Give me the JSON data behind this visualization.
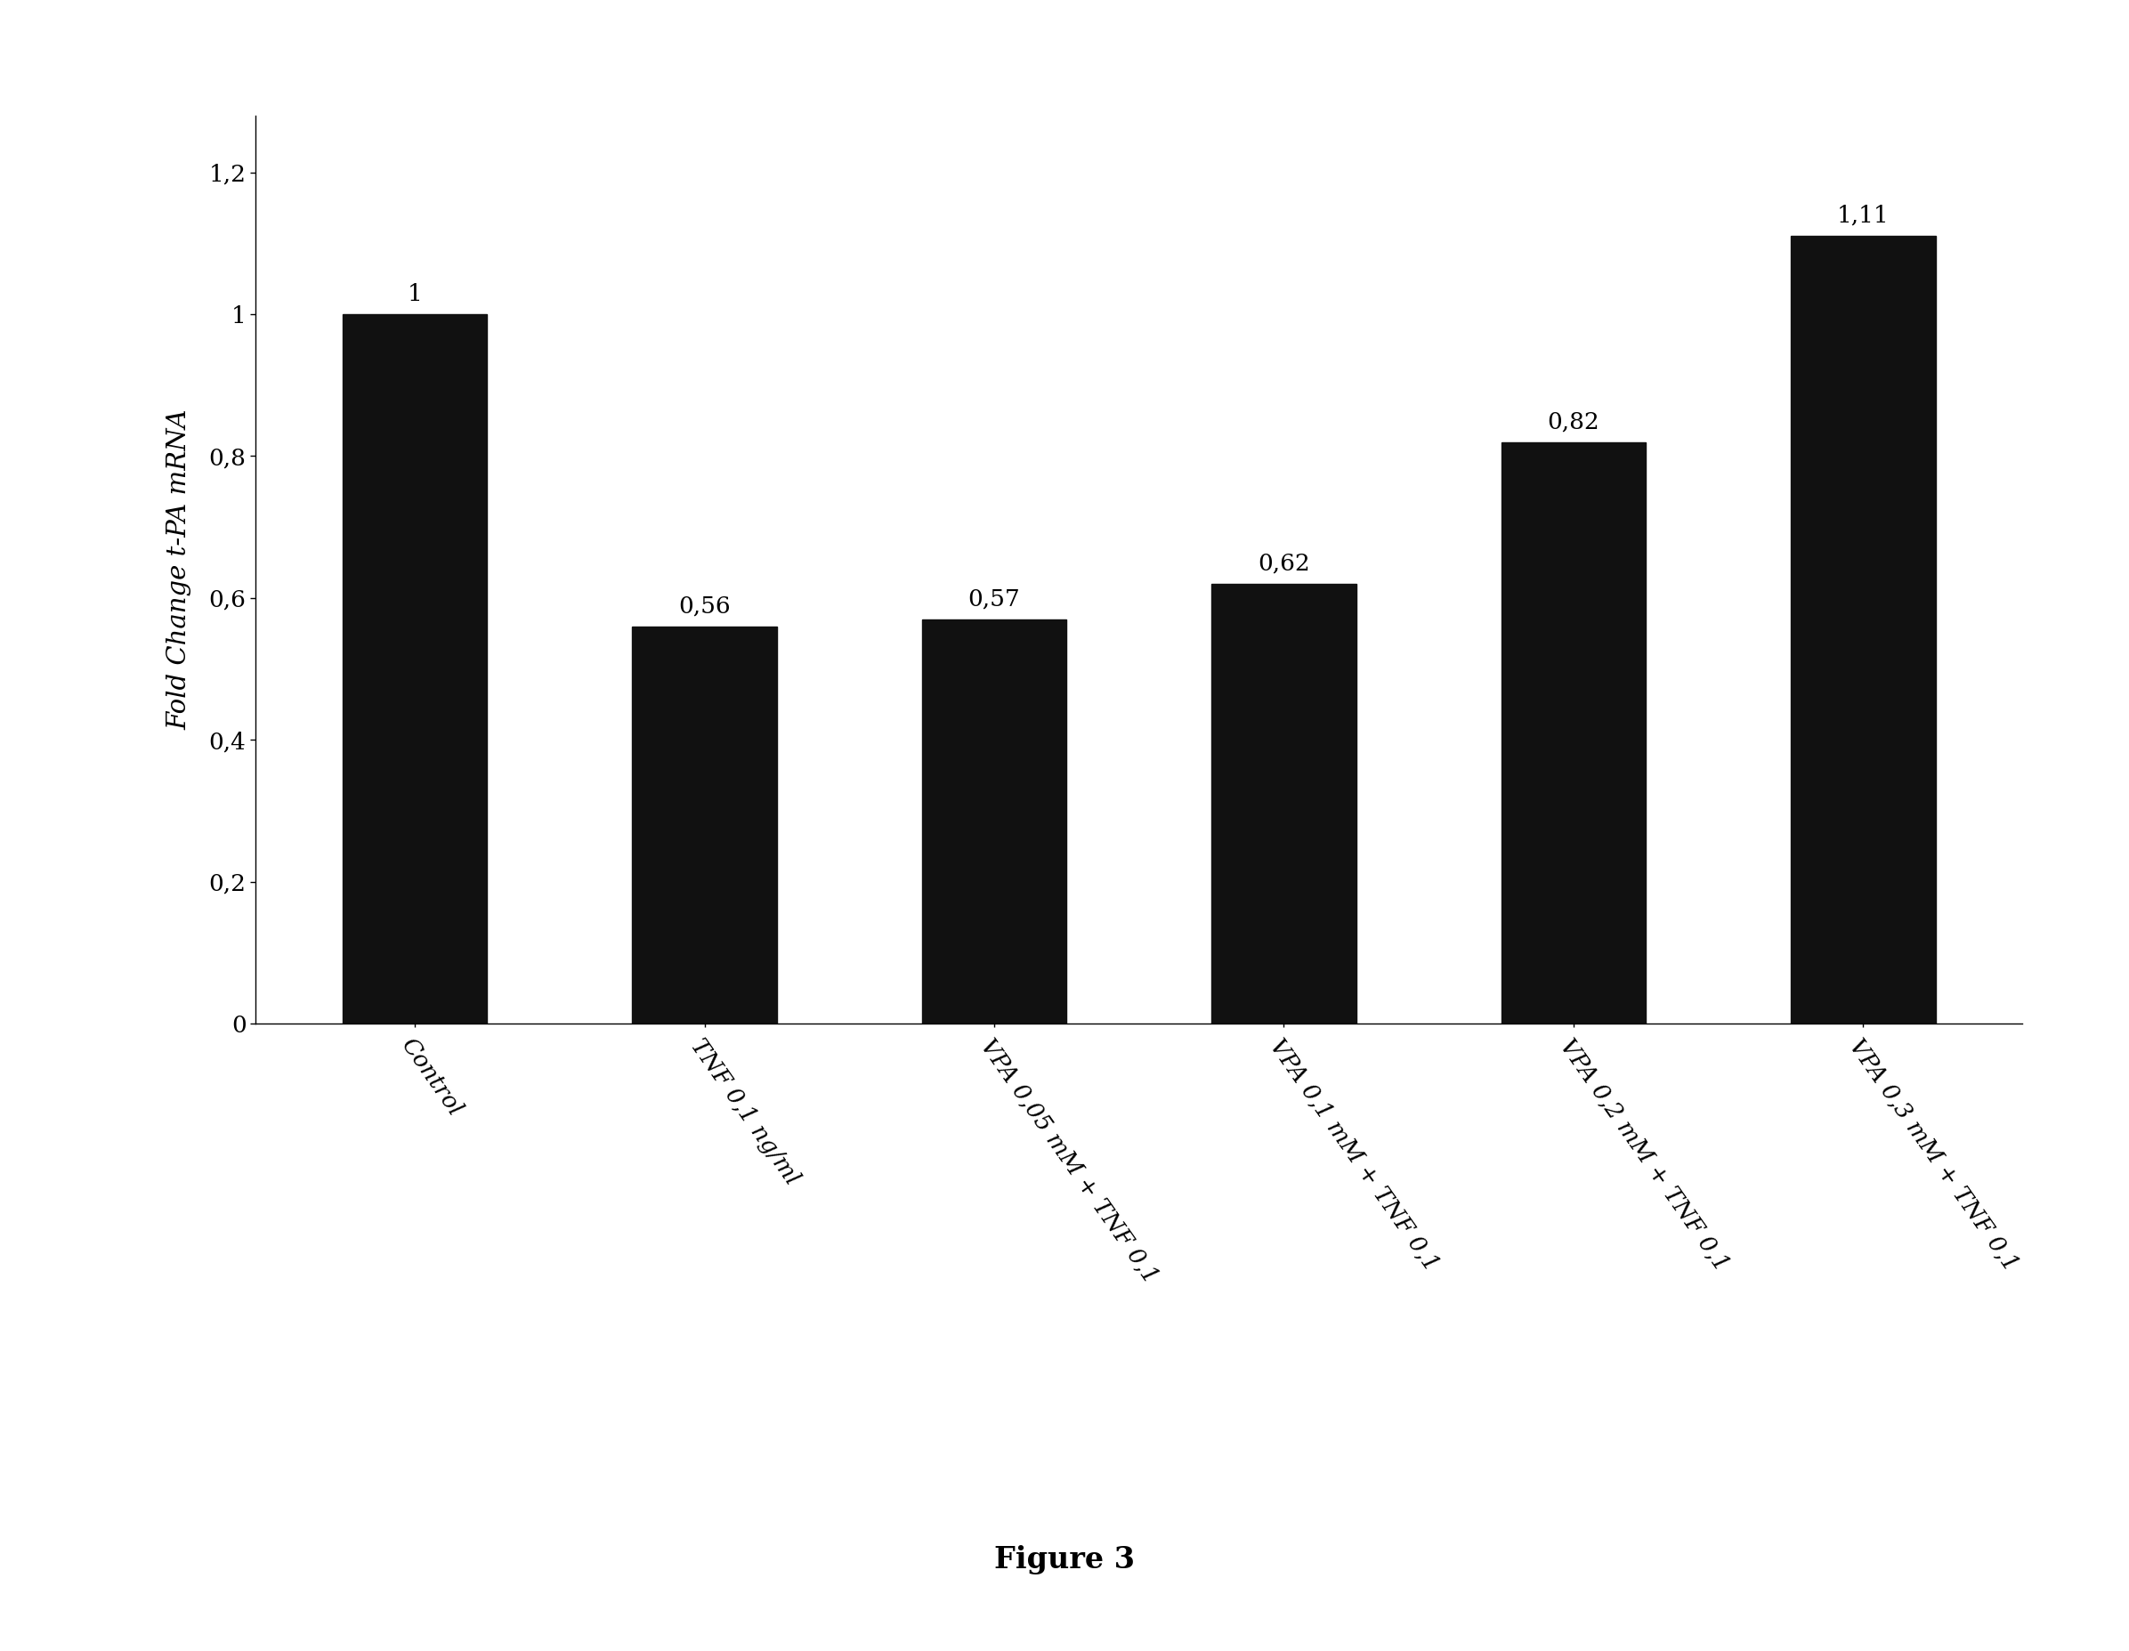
{
  "categories": [
    "Control",
    "TNF 0,1 ng/ml",
    "VPA 0,05 mM + TNF 0,1",
    "VPA 0,1 mM + TNF 0,1",
    "VPA 0,2 mM + TNF 0,1",
    "VPA 0,3 mM + TNF 0,1"
  ],
  "values": [
    1.0,
    0.56,
    0.57,
    0.62,
    0.82,
    1.11
  ],
  "value_labels": [
    "1",
    "0,56",
    "0,57",
    "0,62",
    "0,82",
    "1,11"
  ],
  "bar_color": "#111111",
  "ylabel": "Fold Change t-PA mRNA",
  "ylim": [
    0,
    1.28
  ],
  "yticks": [
    0,
    0.2,
    0.4,
    0.6,
    0.8,
    1.0,
    1.2
  ],
  "ytick_labels": [
    "0",
    "0,2",
    "0,4",
    "0,6",
    "0,8",
    "1",
    "1,2"
  ],
  "figure_caption": "Figure 3",
  "background_color": "#ffffff",
  "bar_width": 0.5,
  "axis_label_fontsize": 21,
  "tick_fontsize": 19,
  "value_label_fontsize": 19,
  "caption_fontsize": 24,
  "xtick_rotation": -55
}
